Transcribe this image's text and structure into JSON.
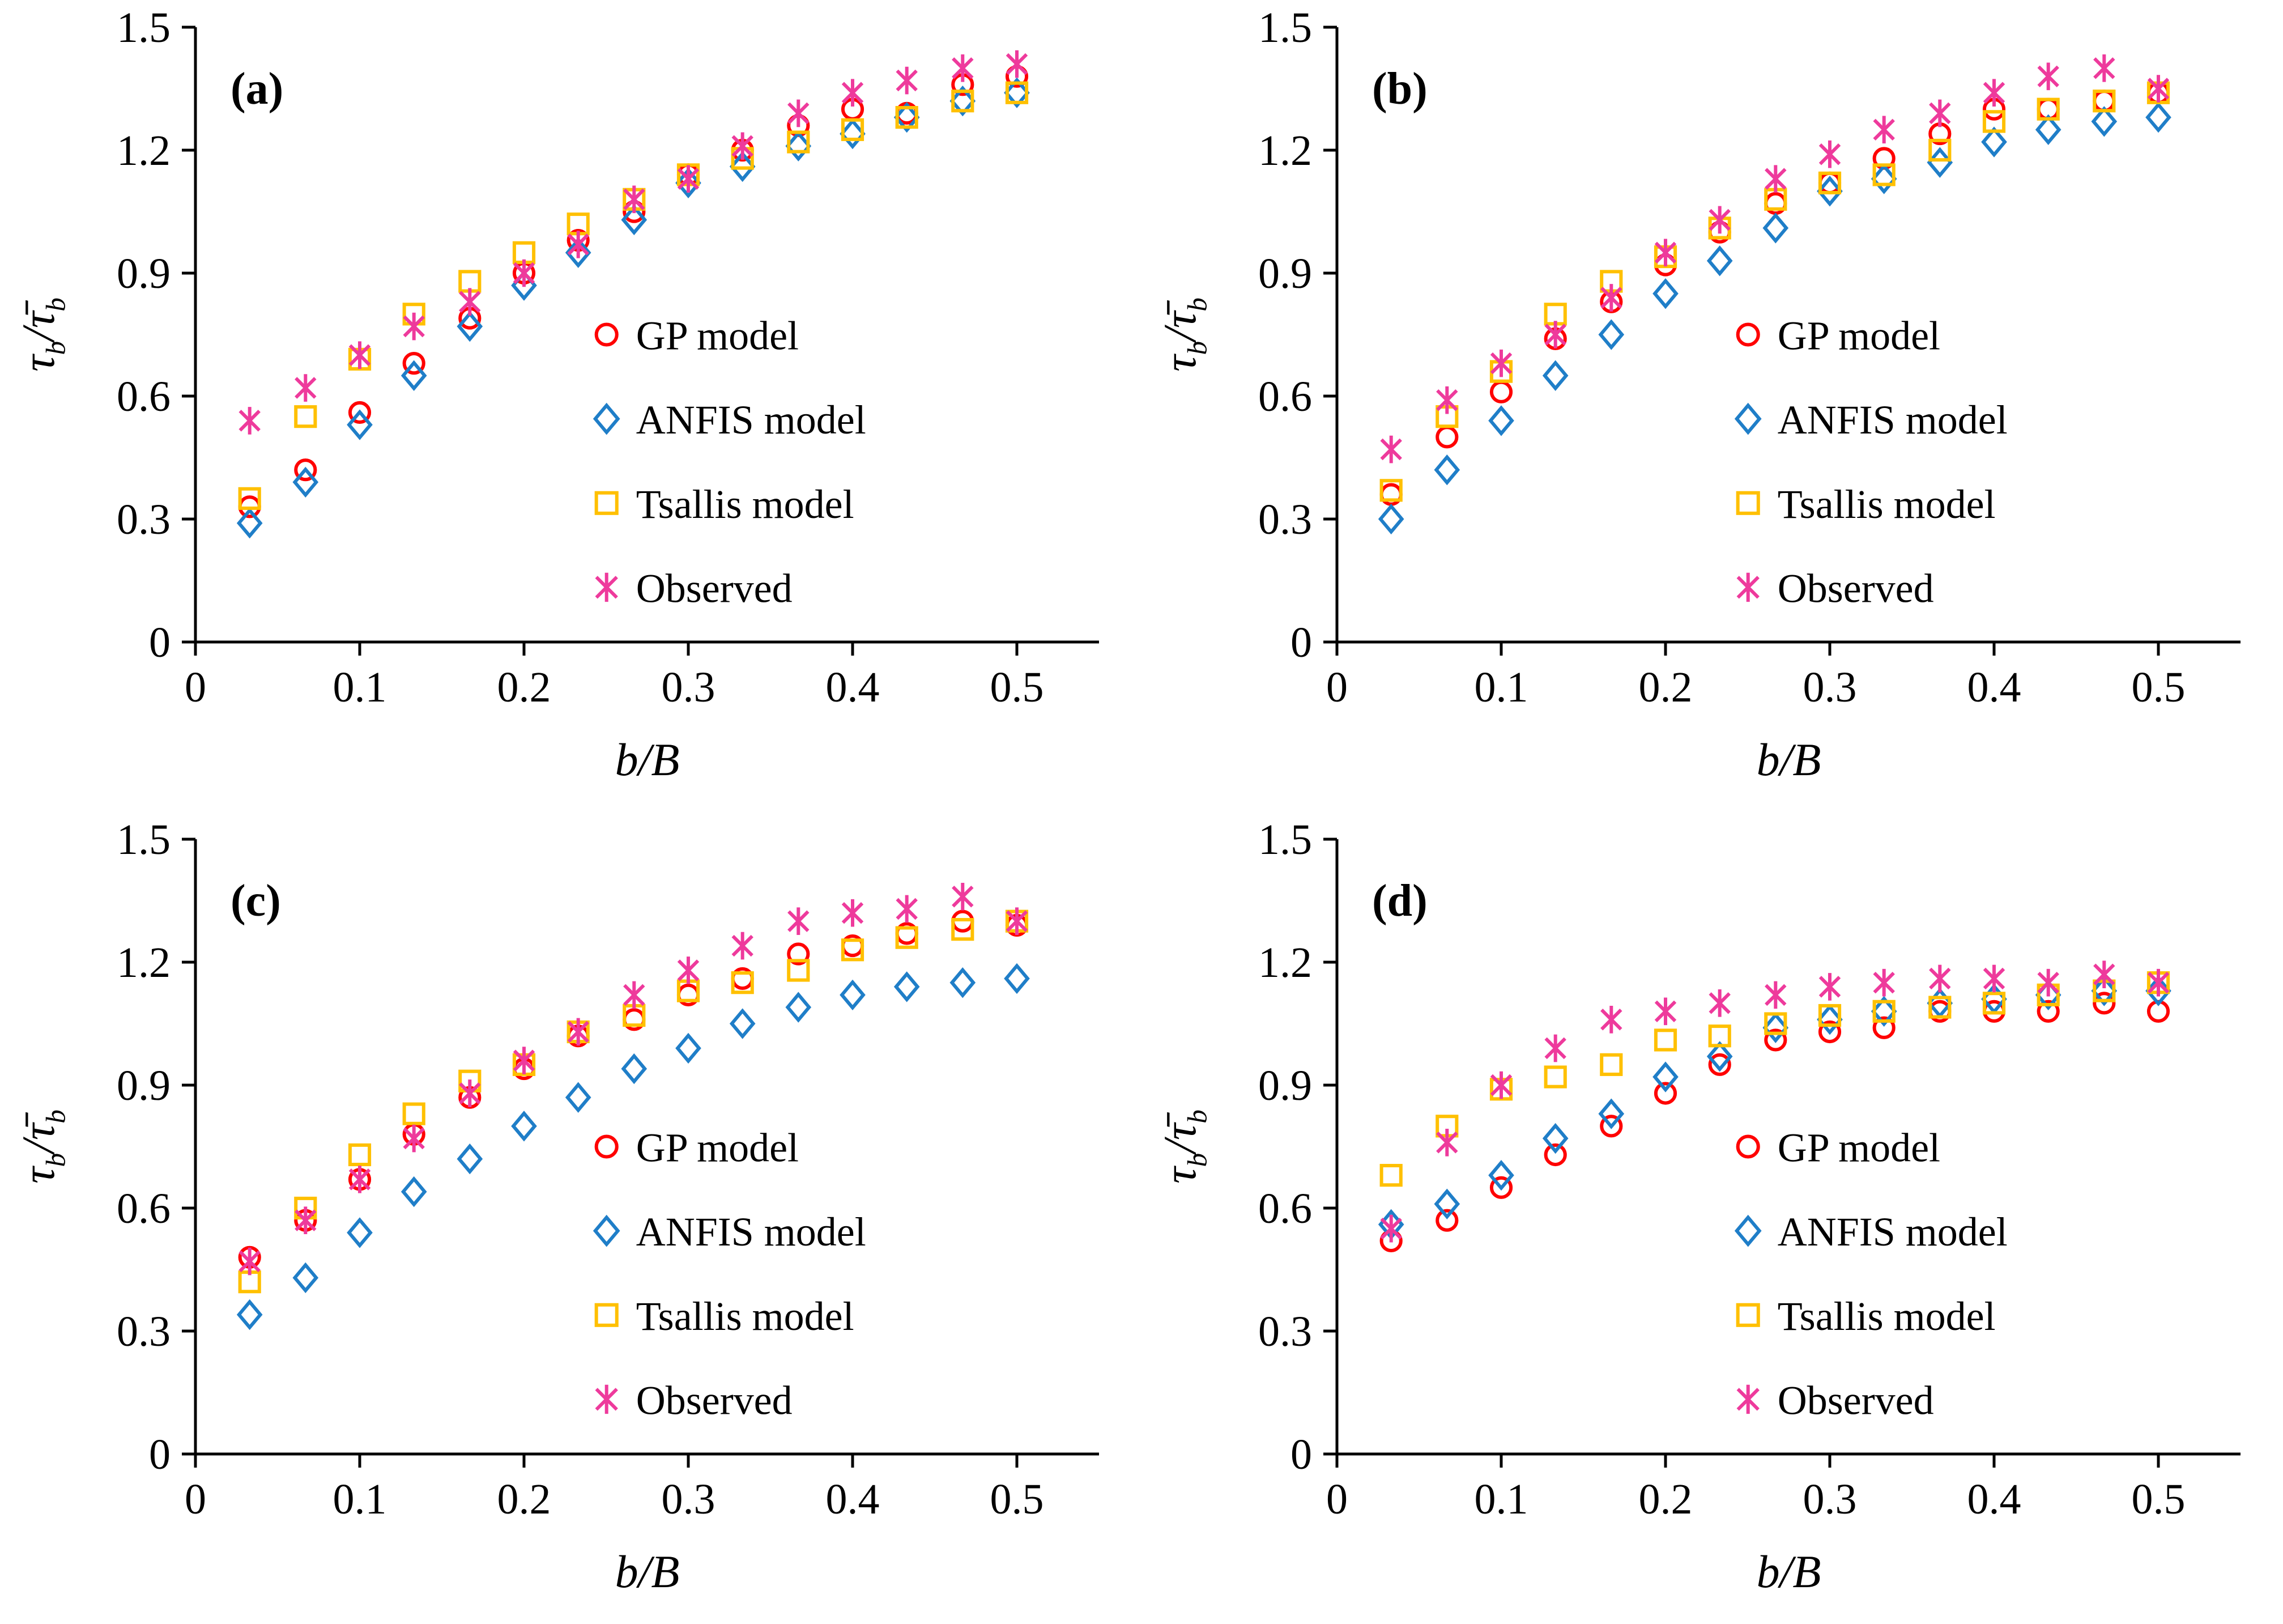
{
  "figure": {
    "background": "#ffffff",
    "axis_color": "#000000",
    "xlabel": "b/B",
    "ylabel": "τ_b/τ̄_b",
    "x_tick_labels": [
      "0",
      "0.1",
      "0.2",
      "0.3",
      "0.4",
      "0.5"
    ],
    "x_tick_values": [
      0,
      0.1,
      0.2,
      0.3,
      0.4,
      0.5
    ],
    "y_tick_labels": [
      "0",
      "0.3",
      "0.6",
      "0.9",
      "1.2",
      "1.5"
    ],
    "y_tick_values": [
      0,
      0.3,
      0.6,
      0.9,
      1.2,
      1.5
    ],
    "xlim": [
      0,
      0.55
    ],
    "ylim": [
      0,
      1.5
    ],
    "grid": false,
    "legend_position": "inside lower right"
  },
  "legend": [
    {
      "label": "GP model",
      "marker": "circle",
      "color": "#FF0000"
    },
    {
      "label": "ANFIS model",
      "marker": "diamond",
      "color": "#1F7EC8"
    },
    {
      "label": "Tsallis model",
      "marker": "square",
      "color": "#FFC000"
    },
    {
      "label": "Observed",
      "marker": "asterisk",
      "color": "#EE3A9C"
    }
  ],
  "chart_data": [
    {
      "type": "scatter",
      "panel_label": "(a)",
      "xlabel": "b/B",
      "ylabel": "τ_b/τ̄_b",
      "xlim": [
        0,
        0.55
      ],
      "ylim": [
        0,
        1.5
      ],
      "x": [
        0.033,
        0.067,
        0.1,
        0.133,
        0.167,
        0.2,
        0.233,
        0.267,
        0.3,
        0.333,
        0.367,
        0.4,
        0.433,
        0.467,
        0.5
      ],
      "series": [
        {
          "name": "GP model",
          "marker": "circle",
          "color": "#FF0000",
          "values": [
            0.33,
            0.42,
            0.56,
            0.68,
            0.79,
            0.9,
            0.98,
            1.05,
            1.14,
            1.2,
            1.26,
            1.3,
            1.29,
            1.36,
            1.38
          ]
        },
        {
          "name": "ANFIS model",
          "marker": "diamond",
          "color": "#1F7EC8",
          "values": [
            0.29,
            0.39,
            0.53,
            0.65,
            0.77,
            0.87,
            0.95,
            1.03,
            1.12,
            1.16,
            1.21,
            1.24,
            1.28,
            1.32,
            1.34
          ]
        },
        {
          "name": "Tsallis model",
          "marker": "square",
          "color": "#FFC000",
          "values": [
            0.35,
            0.55,
            0.69,
            0.8,
            0.88,
            0.95,
            1.02,
            1.08,
            1.14,
            1.18,
            1.22,
            1.25,
            1.28,
            1.32,
            1.34
          ]
        },
        {
          "name": "Observed",
          "marker": "asterisk",
          "color": "#EE3A9C",
          "values": [
            0.54,
            0.62,
            0.7,
            0.77,
            0.83,
            0.9,
            0.97,
            1.08,
            1.13,
            1.21,
            1.29,
            1.34,
            1.37,
            1.4,
            1.41
          ]
        }
      ]
    },
    {
      "type": "scatter",
      "panel_label": "(b)",
      "xlabel": "b/B",
      "ylabel": "τ_b/τ̄_b",
      "xlim": [
        0,
        0.55
      ],
      "ylim": [
        0,
        1.5
      ],
      "x": [
        0.033,
        0.067,
        0.1,
        0.133,
        0.167,
        0.2,
        0.233,
        0.267,
        0.3,
        0.333,
        0.367,
        0.4,
        0.433,
        0.467,
        0.5
      ],
      "series": [
        {
          "name": "GP model",
          "marker": "circle",
          "color": "#FF0000",
          "values": [
            0.36,
            0.5,
            0.61,
            0.74,
            0.83,
            0.92,
            1.0,
            1.07,
            1.12,
            1.18,
            1.24,
            1.3,
            1.3,
            1.32,
            1.34
          ]
        },
        {
          "name": "ANFIS model",
          "marker": "diamond",
          "color": "#1F7EC8",
          "values": [
            0.3,
            0.42,
            0.54,
            0.65,
            0.75,
            0.85,
            0.93,
            1.01,
            1.1,
            1.13,
            1.17,
            1.22,
            1.25,
            1.27,
            1.28
          ]
        },
        {
          "name": "Tsallis model",
          "marker": "square",
          "color": "#FFC000",
          "values": [
            0.37,
            0.55,
            0.66,
            0.8,
            0.88,
            0.94,
            1.01,
            1.08,
            1.12,
            1.14,
            1.2,
            1.27,
            1.3,
            1.32,
            1.34
          ]
        },
        {
          "name": "Observed",
          "marker": "asterisk",
          "color": "#EE3A9C",
          "values": [
            0.47,
            0.59,
            0.68,
            0.75,
            0.84,
            0.95,
            1.03,
            1.13,
            1.19,
            1.25,
            1.29,
            1.34,
            1.38,
            1.4,
            1.35
          ]
        }
      ]
    },
    {
      "type": "scatter",
      "panel_label": "(c)",
      "xlabel": "b/B",
      "ylabel": "τ_b/τ̄_b",
      "xlim": [
        0,
        0.55
      ],
      "ylim": [
        0,
        1.5
      ],
      "x": [
        0.033,
        0.067,
        0.1,
        0.133,
        0.167,
        0.2,
        0.233,
        0.267,
        0.3,
        0.333,
        0.367,
        0.4,
        0.433,
        0.467,
        0.5
      ],
      "series": [
        {
          "name": "GP model",
          "marker": "circle",
          "color": "#FF0000",
          "values": [
            0.48,
            0.57,
            0.67,
            0.78,
            0.87,
            0.94,
            1.02,
            1.06,
            1.12,
            1.16,
            1.22,
            1.24,
            1.27,
            1.3,
            1.29
          ]
        },
        {
          "name": "ANFIS model",
          "marker": "diamond",
          "color": "#1F7EC8",
          "values": [
            0.34,
            0.43,
            0.54,
            0.64,
            0.72,
            0.8,
            0.87,
            0.94,
            0.99,
            1.05,
            1.09,
            1.12,
            1.14,
            1.15,
            1.16
          ]
        },
        {
          "name": "Tsallis model",
          "marker": "square",
          "color": "#FFC000",
          "values": [
            0.42,
            0.6,
            0.73,
            0.83,
            0.91,
            0.95,
            1.03,
            1.07,
            1.13,
            1.15,
            1.18,
            1.23,
            1.26,
            1.28,
            1.3
          ]
        },
        {
          "name": "Observed",
          "marker": "asterisk",
          "color": "#EE3A9C",
          "values": [
            0.47,
            0.57,
            0.67,
            0.77,
            0.88,
            0.96,
            1.03,
            1.12,
            1.18,
            1.24,
            1.3,
            1.32,
            1.33,
            1.36,
            1.3
          ]
        }
      ]
    },
    {
      "type": "scatter",
      "panel_label": "(d)",
      "xlabel": "b/B",
      "ylabel": "τ_b/τ̄_b",
      "xlim": [
        0,
        0.55
      ],
      "ylim": [
        0,
        1.5
      ],
      "x": [
        0.033,
        0.067,
        0.1,
        0.133,
        0.167,
        0.2,
        0.233,
        0.267,
        0.3,
        0.333,
        0.367,
        0.4,
        0.433,
        0.467,
        0.5
      ],
      "series": [
        {
          "name": "GP model",
          "marker": "circle",
          "color": "#FF0000",
          "values": [
            0.52,
            0.57,
            0.65,
            0.73,
            0.8,
            0.88,
            0.95,
            1.01,
            1.03,
            1.04,
            1.08,
            1.08,
            1.08,
            1.1,
            1.08
          ]
        },
        {
          "name": "ANFIS model",
          "marker": "diamond",
          "color": "#1F7EC8",
          "values": [
            0.56,
            0.61,
            0.68,
            0.77,
            0.83,
            0.92,
            0.97,
            1.04,
            1.06,
            1.08,
            1.1,
            1.11,
            1.12,
            1.13,
            1.13
          ]
        },
        {
          "name": "Tsallis model",
          "marker": "square",
          "color": "#FFC000",
          "values": [
            0.68,
            0.8,
            0.89,
            0.92,
            0.95,
            1.01,
            1.02,
            1.05,
            1.07,
            1.08,
            1.09,
            1.1,
            1.12,
            1.13,
            1.15
          ]
        },
        {
          "name": "Observed",
          "marker": "asterisk",
          "color": "#EE3A9C",
          "values": [
            0.55,
            0.76,
            0.9,
            0.99,
            1.06,
            1.08,
            1.1,
            1.12,
            1.14,
            1.15,
            1.16,
            1.16,
            1.15,
            1.17,
            1.15
          ]
        }
      ]
    }
  ]
}
